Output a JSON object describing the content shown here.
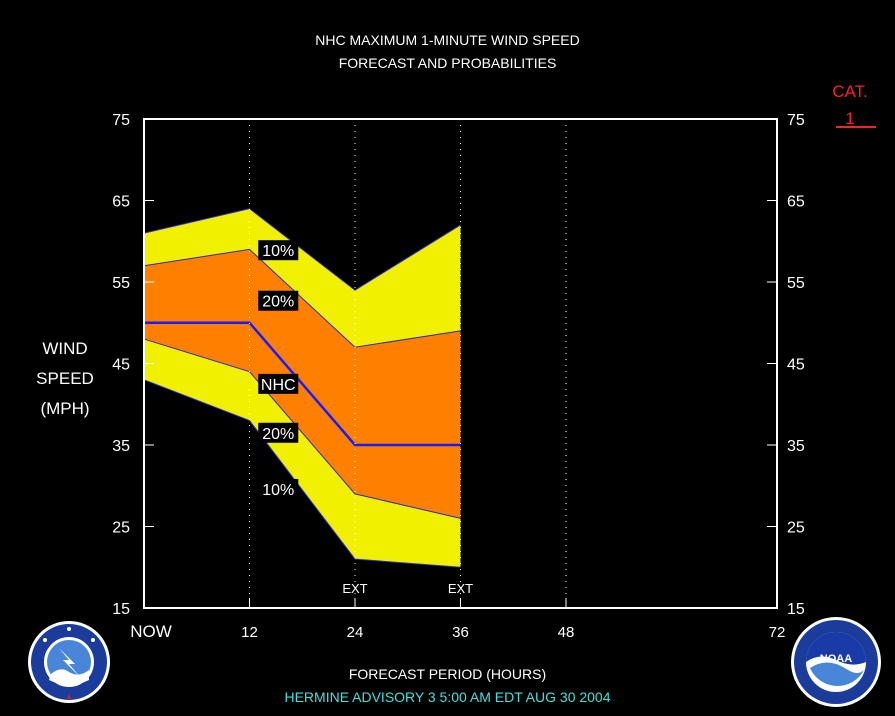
{
  "title_line1": "NHC MAXIMUM 1-MINUTE WIND SPEED",
  "title_line2": "FORECAST AND PROBABILITIES",
  "ylabel_lines": [
    "WIND",
    "SPEED",
    "(MPH)"
  ],
  "xlabel": "FORECAST PERIOD (HOURS)",
  "advisory": "HERMINE   ADVISORY  3 5:00 AM  EDT AUG 30 2004",
  "category_label": "CAT.",
  "category_value": "1",
  "logos": {
    "left": "nws-logo",
    "right": "noaa-logo"
  },
  "colors": {
    "background": "#000000",
    "band_10": "#f0f000",
    "band_20": "#ff8000",
    "nhc_line": "#1a1aff",
    "frame": "#ffffff",
    "advisory": "#40e0e0",
    "category": "#ff2020"
  },
  "chart_data": {
    "type": "area",
    "x": [
      0,
      12,
      24,
      36
    ],
    "xlim": [
      0,
      72
    ],
    "ylim": [
      15,
      75
    ],
    "x_ticks": [
      {
        "value": 0,
        "label": "NOW"
      },
      {
        "value": 12,
        "label": "12"
      },
      {
        "value": 24,
        "label": "24"
      },
      {
        "value": 36,
        "label": "36"
      },
      {
        "value": 48,
        "label": "48"
      },
      {
        "value": 72,
        "label": "72"
      }
    ],
    "y_ticks": [
      15,
      25,
      35,
      45,
      55,
      65,
      75
    ],
    "vertical_gridlines": [
      12,
      24,
      36,
      48
    ],
    "ext_markers": [
      {
        "x": 24,
        "label": "EXT"
      },
      {
        "x": 36,
        "label": "EXT"
      }
    ],
    "series": [
      {
        "name": "10%",
        "values": [
          61,
          64,
          54,
          62
        ]
      },
      {
        "name": "20%",
        "values": [
          57,
          59,
          47,
          49
        ]
      },
      {
        "name": "NHC",
        "values": [
          50,
          50,
          35,
          35
        ]
      },
      {
        "name": "20%",
        "values": [
          48,
          44,
          29,
          26
        ]
      },
      {
        "name": "10%",
        "values": [
          43,
          38,
          21,
          20
        ]
      }
    ],
    "series_labels": [
      {
        "text": "10%",
        "x": 15.5,
        "y": 58.9
      },
      {
        "text": "20%",
        "x": 15.5,
        "y": 52.7
      },
      {
        "text": "NHC",
        "x": 15.5,
        "y": 42.5
      },
      {
        "text": "20%",
        "x": 15.5,
        "y": 36.5
      },
      {
        "text": "10%",
        "x": 15.5,
        "y": 29.6
      }
    ]
  }
}
